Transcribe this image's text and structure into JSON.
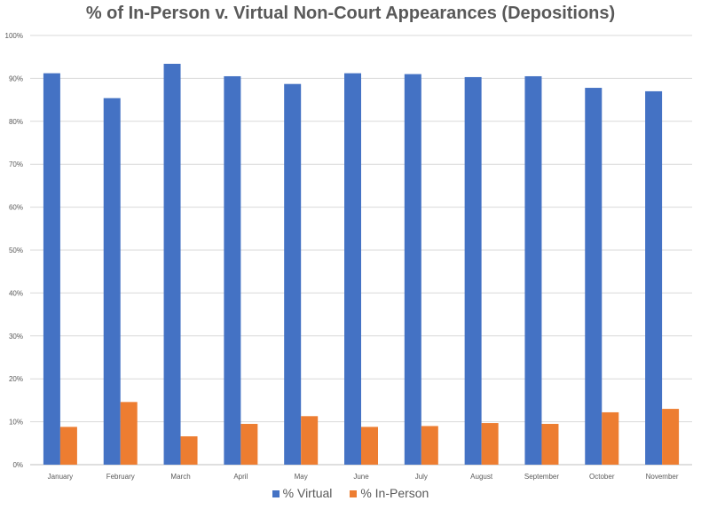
{
  "chart_data": {
    "type": "bar",
    "title": "% of In-Person v. Virtual Non-Court Appearances (Depositions)",
    "xlabel": "",
    "ylabel": "",
    "ylim": [
      0,
      100
    ],
    "yticks": [
      "0%",
      "10%",
      "20%",
      "30%",
      "40%",
      "50%",
      "60%",
      "70%",
      "80%",
      "90%",
      "100%"
    ],
    "categories": [
      "January",
      "February",
      "March",
      "April",
      "May",
      "June",
      "July",
      "August",
      "September",
      "October",
      "November"
    ],
    "series": [
      {
        "name": "% Virtual",
        "color": "#4472C4",
        "values": [
          91.2,
          85.4,
          93.4,
          90.5,
          88.7,
          91.2,
          91.0,
          90.3,
          90.5,
          87.8,
          87.0
        ]
      },
      {
        "name": "% In-Person",
        "color": "#ED7D31",
        "values": [
          8.8,
          14.6,
          6.6,
          9.5,
          11.3,
          8.8,
          9.0,
          9.7,
          9.5,
          12.2,
          13.0
        ]
      }
    ],
    "grid": true,
    "legend": "bottom"
  }
}
